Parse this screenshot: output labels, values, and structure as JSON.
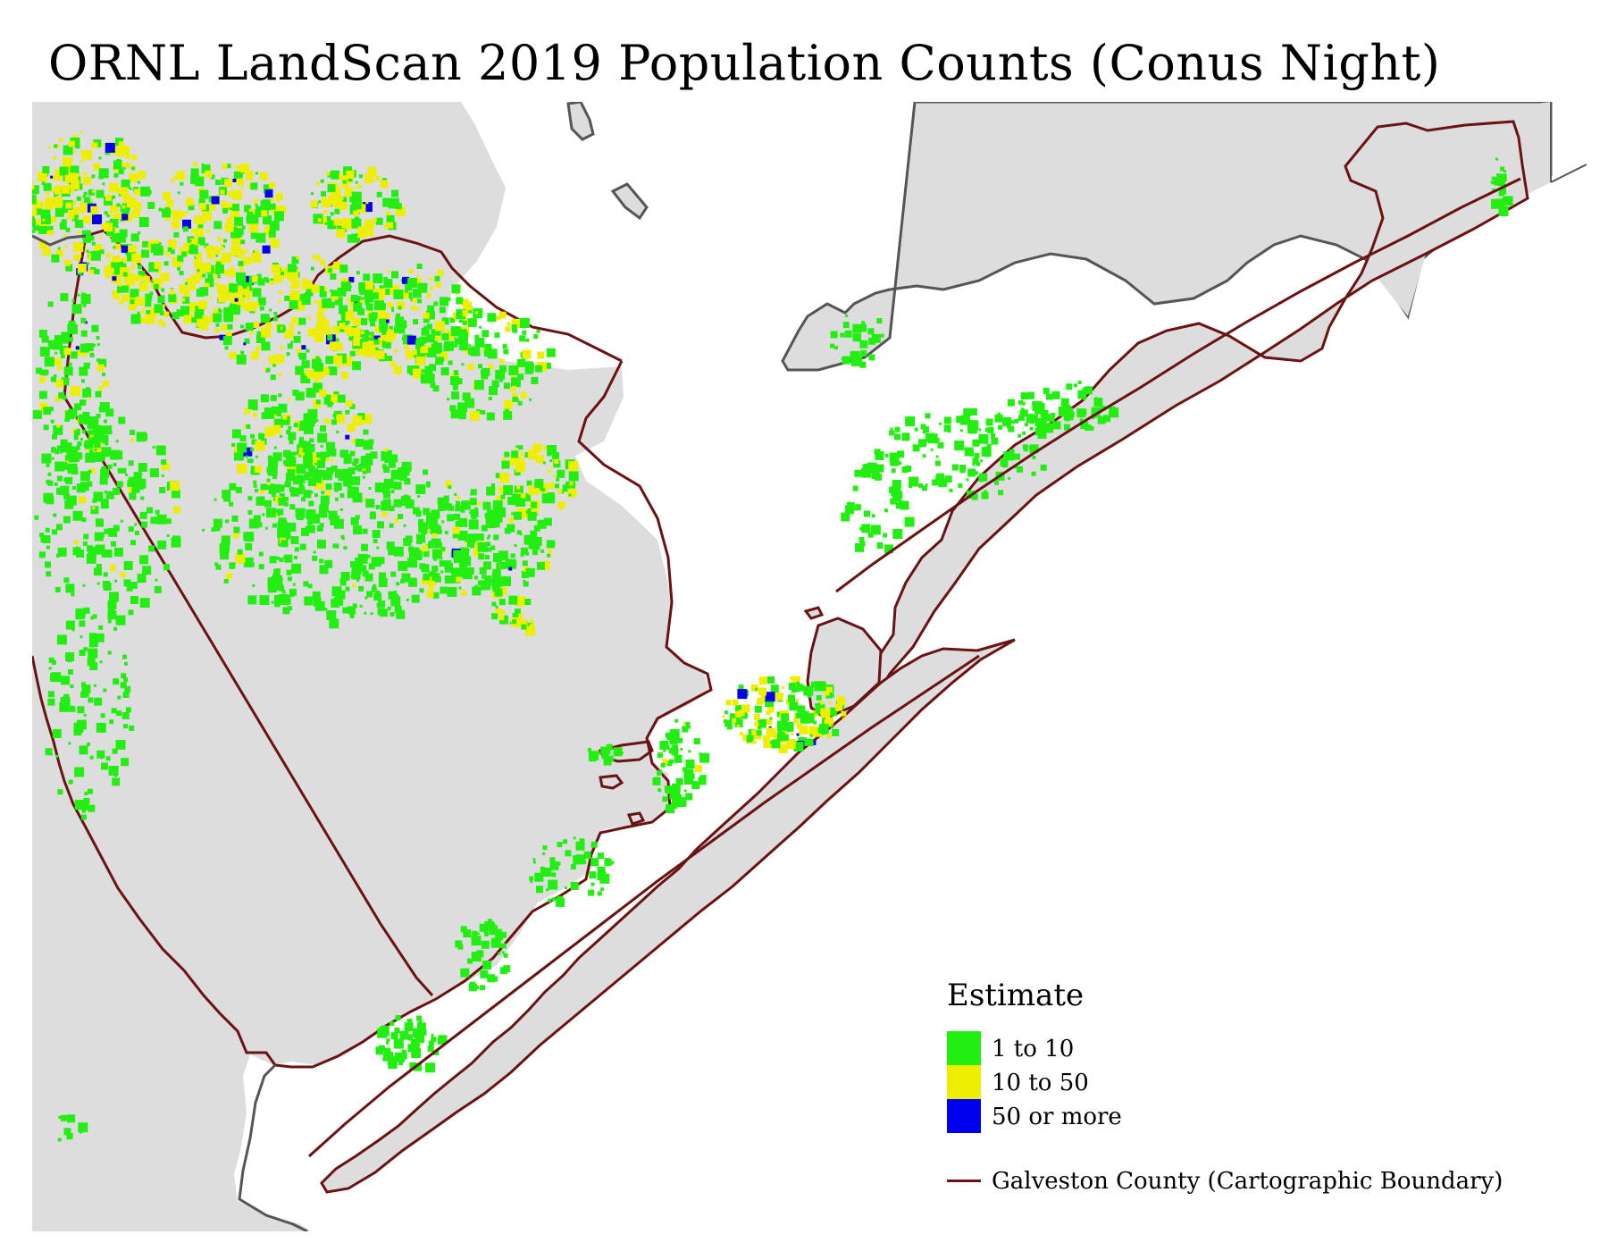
{
  "title": "ORNL LandScan 2019 Population Counts (Conus Night)",
  "colors": {
    "water": "#ffffff",
    "land": "#dddddd",
    "state_outline": "#555555",
    "county_boundary": "#6b1212",
    "class_low": "#22ee11",
    "class_mid": "#eeee00",
    "class_high": "#0000ee"
  },
  "legend": {
    "title": "Estimate",
    "classes": [
      {
        "label": "1 to 10",
        "color": "#22ee11"
      },
      {
        "label": "10 to 50",
        "color": "#eeee00"
      },
      {
        "label": "50 or more",
        "color": "#0000ee"
      }
    ],
    "boundary_label": "Galveston County (Cartographic Boundary)"
  }
}
